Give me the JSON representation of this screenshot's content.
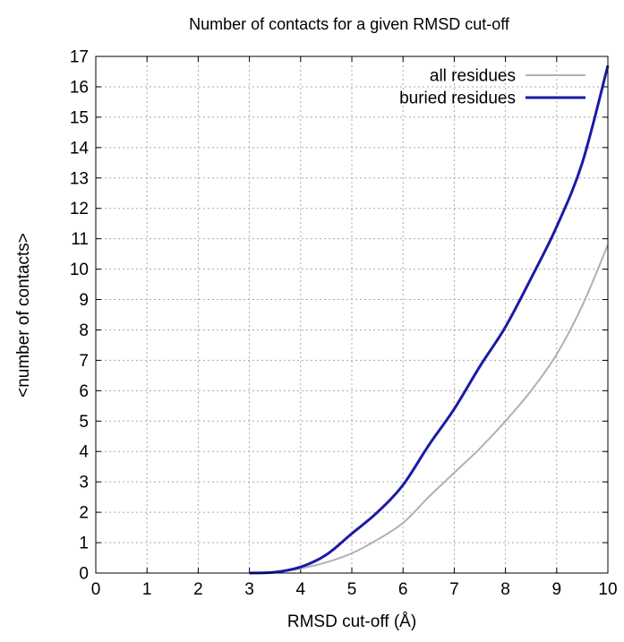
{
  "chart_data": {
    "type": "line",
    "title": "Number of contacts for a given RMSD cut-off",
    "xlabel": "RMSD cut-off (Å)",
    "ylabel": "<number of contacts>",
    "xlim": [
      0,
      10
    ],
    "ylim": [
      0,
      17
    ],
    "xticks": [
      "0",
      "1",
      "2",
      "3",
      "4",
      "5",
      "6",
      "7",
      "8",
      "9",
      "10"
    ],
    "yticks": [
      "0",
      "1",
      "2",
      "3",
      "4",
      "5",
      "6",
      "7",
      "8",
      "9",
      "10",
      "11",
      "12",
      "13",
      "14",
      "15",
      "16",
      "17"
    ],
    "grid": true,
    "legend_position": "top-right",
    "series": [
      {
        "name": "all residues",
        "color": "#b0b0b0",
        "x": [
          3.0,
          3.5,
          4.0,
          4.5,
          5.0,
          5.5,
          6.0,
          6.5,
          7.0,
          7.5,
          8.0,
          8.5,
          9.0,
          9.5,
          10.0
        ],
        "y": [
          0.0,
          0.02,
          0.15,
          0.35,
          0.65,
          1.1,
          1.65,
          2.5,
          3.3,
          4.1,
          5.0,
          6.0,
          7.2,
          8.8,
          10.8
        ]
      },
      {
        "name": "buried residues",
        "color": "#1a1aa6",
        "x": [
          3.0,
          3.5,
          4.0,
          4.5,
          5.0,
          5.5,
          6.0,
          6.5,
          7.0,
          7.5,
          8.0,
          8.5,
          9.0,
          9.5,
          10.0
        ],
        "y": [
          0.0,
          0.03,
          0.2,
          0.6,
          1.3,
          2.0,
          2.9,
          4.2,
          5.4,
          6.8,
          8.1,
          9.7,
          11.4,
          13.5,
          16.7
        ]
      }
    ]
  }
}
